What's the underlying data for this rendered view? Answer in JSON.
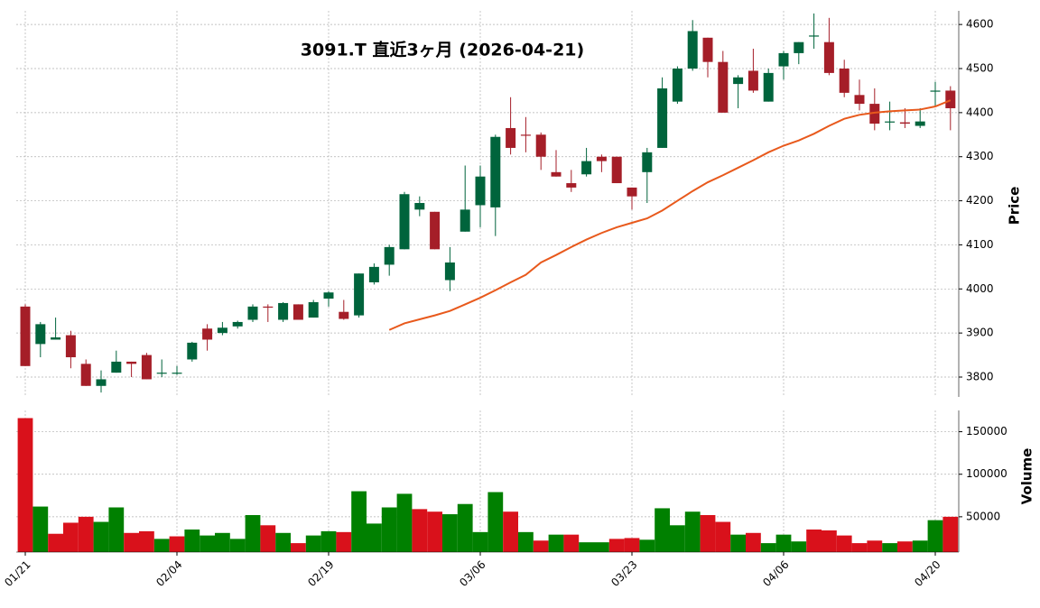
{
  "chart_data": {
    "type": "candlestick",
    "title": "3091.T  直近3ヶ月  (2026-04-21)",
    "categories": [
      "01/21",
      null,
      null,
      null,
      null,
      null,
      null,
      null,
      null,
      null,
      "02/04",
      null,
      null,
      null,
      null,
      null,
      null,
      null,
      null,
      null,
      "02/19",
      null,
      null,
      null,
      null,
      null,
      null,
      null,
      null,
      null,
      "03/06",
      null,
      null,
      null,
      null,
      null,
      null,
      null,
      null,
      null,
      "03/23",
      null,
      null,
      null,
      null,
      null,
      null,
      null,
      null,
      null,
      "04/06",
      null,
      null,
      null,
      null,
      null,
      null,
      null,
      null,
      null,
      "04/20",
      null
    ],
    "open": [
      3960,
      3875,
      3885,
      3895,
      3830,
      3780,
      3810,
      3835,
      3850,
      3808,
      3808,
      3840,
      3910,
      3900,
      3915,
      3930,
      3960,
      3930,
      3965,
      3935,
      3978,
      3948,
      3940,
      4015,
      4055,
      4090,
      4180,
      4175,
      4020,
      4130,
      4190,
      4185,
      4365,
      4350,
      4350,
      4265,
      4240,
      4260,
      4300,
      4300,
      4230,
      4265,
      4320,
      4425,
      4500,
      4570,
      4515,
      4465,
      4495,
      4425,
      4505,
      4535,
      4575,
      4560,
      4500,
      4440,
      4420,
      4380,
      4378,
      4370,
      4450,
      4450
    ],
    "high": [
      3965,
      3925,
      3935,
      3905,
      3840,
      3815,
      3860,
      3835,
      3855,
      3840,
      3825,
      3880,
      3920,
      3925,
      3928,
      3965,
      3965,
      3970,
      3965,
      3975,
      3995,
      3975,
      4035,
      4058,
      4100,
      4220,
      4210,
      4175,
      4095,
      4280,
      4280,
      4350,
      4435,
      4390,
      4355,
      4315,
      4270,
      4320,
      4305,
      4300,
      4230,
      4320,
      4480,
      4505,
      4610,
      4570,
      4540,
      4485,
      4545,
      4500,
      4540,
      4560,
      4625,
      4615,
      4520,
      4475,
      4455,
      4425,
      4410,
      4410,
      4470,
      4460
    ],
    "low": [
      3825,
      3845,
      3885,
      3820,
      3780,
      3765,
      3810,
      3800,
      3795,
      3800,
      3805,
      3835,
      3860,
      3895,
      3910,
      3925,
      3925,
      3925,
      3930,
      3935,
      3960,
      3930,
      3935,
      4010,
      4030,
      4090,
      4165,
      4090,
      3995,
      4130,
      4140,
      4120,
      4305,
      4310,
      4270,
      4255,
      4220,
      4255,
      4265,
      4240,
      4180,
      4195,
      4320,
      4420,
      4495,
      4480,
      4400,
      4410,
      4445,
      4425,
      4475,
      4510,
      4545,
      4485,
      4435,
      4405,
      4360,
      4360,
      4365,
      4365,
      4415,
      4360
    ],
    "close": [
      3825,
      3920,
      3890,
      3845,
      3780,
      3795,
      3835,
      3830,
      3795,
      3810,
      3810,
      3878,
      3885,
      3912,
      3925,
      3960,
      3958,
      3968,
      3930,
      3970,
      3992,
      3932,
      4035,
      4050,
      4095,
      4215,
      4195,
      4090,
      4060,
      4180,
      4255,
      4345,
      4320,
      4348,
      4300,
      4255,
      4230,
      4290,
      4290,
      4240,
      4210,
      4310,
      4455,
      4500,
      4585,
      4515,
      4400,
      4480,
      4450,
      4490,
      4535,
      4560,
      4575,
      4490,
      4445,
      4420,
      4375,
      4380,
      4375,
      4380,
      4450,
      4410
    ],
    "up_color": "#00643c",
    "down_color": "#a51e28",
    "ylabel": "Price",
    "ylim": [
      3755,
      4631
    ],
    "yticks": [
      3800,
      3900,
      4000,
      4100,
      4200,
      4300,
      4400,
      4500,
      4600
    ],
    "grid": true,
    "ma": {
      "color": "#e8591c",
      "values": [
        null,
        null,
        null,
        null,
        null,
        null,
        null,
        null,
        null,
        null,
        null,
        null,
        null,
        null,
        null,
        null,
        null,
        null,
        null,
        null,
        null,
        null,
        null,
        null,
        3907,
        3922,
        3931,
        3940,
        3950,
        3965,
        3980,
        3997,
        4015,
        4032,
        4060,
        4077,
        4095,
        4112,
        4127,
        4140,
        4150,
        4160,
        4178,
        4200,
        4222,
        4242,
        4258,
        4275,
        4292,
        4310,
        4325,
        4337,
        4352,
        4370,
        4386,
        4395,
        4400,
        4403,
        4405,
        4407,
        4414,
        4428
      ]
    },
    "volume": {
      "ylabel": "Volume",
      "values": [
        166000,
        62000,
        30000,
        43000,
        50000,
        44000,
        61000,
        31000,
        33000,
        24000,
        27000,
        35000,
        28000,
        31000,
        24000,
        52000,
        40000,
        31000,
        19000,
        28000,
        33000,
        32000,
        80000,
        42000,
        61000,
        77000,
        59000,
        56000,
        53000,
        65000,
        32000,
        79000,
        56000,
        32000,
        22000,
        29000,
        29000,
        20000,
        20000,
        24000,
        25000,
        23000,
        60000,
        40000,
        56000,
        52000,
        44000,
        29000,
        31000,
        19000,
        29000,
        21000,
        35000,
        34000,
        28000,
        19000,
        22000,
        19000,
        21000,
        22000,
        46000,
        50000
      ],
      "colors": [
        "#d9111b",
        "#008000",
        "#d9111b",
        "#d9111b",
        "#d9111b",
        "#008000",
        "#008000",
        "#d9111b",
        "#d9111b",
        "#008000",
        "#d9111b",
        "#008000",
        "#008000",
        "#008000",
        "#008000",
        "#008000",
        "#d9111b",
        "#008000",
        "#d9111b",
        "#008000",
        "#008000",
        "#d9111b",
        "#008000",
        "#008000",
        "#008000",
        "#008000",
        "#d9111b",
        "#d9111b",
        "#008000",
        "#008000",
        "#008000",
        "#008000",
        "#d9111b",
        "#008000",
        "#d9111b",
        "#008000",
        "#d9111b",
        "#008000",
        "#008000",
        "#d9111b",
        "#d9111b",
        "#008000",
        "#008000",
        "#008000",
        "#008000",
        "#d9111b",
        "#d9111b",
        "#008000",
        "#d9111b",
        "#008000",
        "#008000",
        "#008000",
        "#d9111b",
        "#d9111b",
        "#d9111b",
        "#d9111b",
        "#d9111b",
        "#008000",
        "#d9111b",
        "#008000",
        "#008000",
        "#d9111b"
      ],
      "ylim": [
        8500,
        175000
      ],
      "yticks": [
        50000,
        100000,
        150000
      ]
    }
  }
}
